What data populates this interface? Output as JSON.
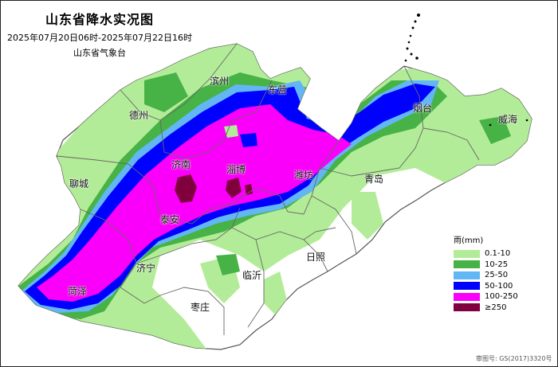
{
  "title": "山东省降水实况图",
  "time_range": "2025年07月20日06时-2025年07月22日16时",
  "organization": "山东省气象台",
  "cities": [
    {
      "name": "滨州"
    },
    {
      "name": "东营"
    },
    {
      "name": "德州"
    },
    {
      "name": "烟台"
    },
    {
      "name": "威海"
    },
    {
      "name": "济南"
    },
    {
      "name": "淄博"
    },
    {
      "name": "潍坊"
    },
    {
      "name": "聊城"
    },
    {
      "name": "青岛"
    },
    {
      "name": "泰安"
    },
    {
      "name": "济宁"
    },
    {
      "name": "临沂"
    },
    {
      "name": "日照"
    },
    {
      "name": "菏泽"
    },
    {
      "name": "枣庄"
    }
  ],
  "legend": {
    "title": "雨(mm)",
    "items": [
      {
        "label": "0.1-10",
        "color": "#b3ec98"
      },
      {
        "label": "10-25",
        "color": "#47b245"
      },
      {
        "label": "25-50",
        "color": "#62b6f3"
      },
      {
        "label": "50-100",
        "color": "#0000fe"
      },
      {
        "label": "100-250",
        "color": "#fa00fa"
      },
      {
        "label": "≥250",
        "color": "#80003e"
      }
    ]
  },
  "approval_number": "审图号: GS(2017)3320号"
}
